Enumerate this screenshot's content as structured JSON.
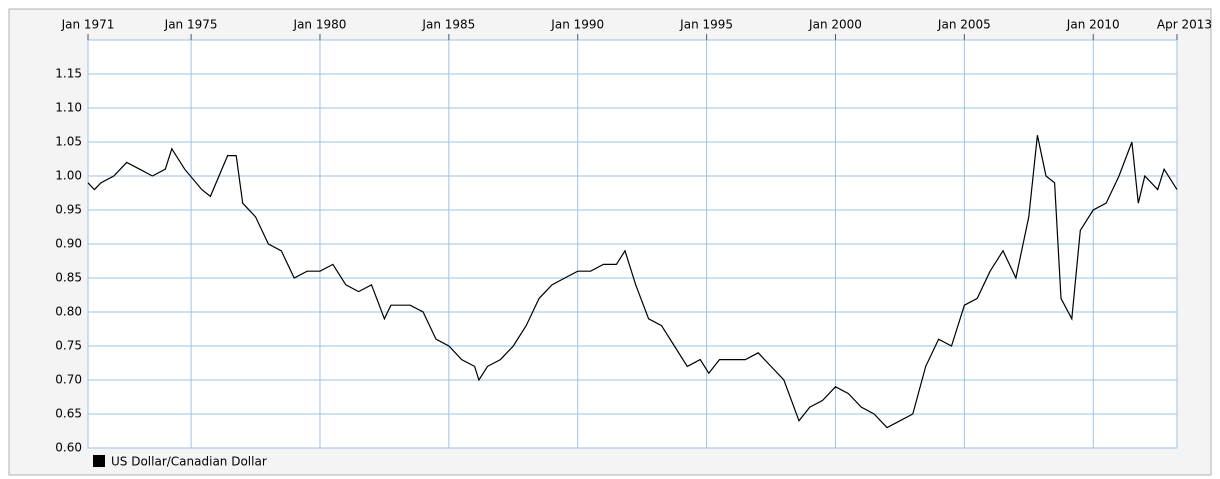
{
  "chart_data": {
    "type": "line",
    "x": [
      "1971-01",
      "1971-04",
      "1971-07",
      "1972-01",
      "1972-07",
      "1973-01",
      "1973-07",
      "1974-01",
      "1974-04",
      "1974-10",
      "1975-06",
      "1975-10",
      "1976-06",
      "1976-10",
      "1977-01",
      "1977-07",
      "1978-01",
      "1978-07",
      "1979-01",
      "1979-07",
      "1980-01",
      "1980-07",
      "1981-01",
      "1981-07",
      "1982-01",
      "1982-07",
      "1982-10",
      "1983-07",
      "1984-01",
      "1984-07",
      "1985-01",
      "1985-07",
      "1986-01",
      "1986-03",
      "1986-07",
      "1987-01",
      "1987-07",
      "1988-01",
      "1988-07",
      "1989-01",
      "1989-07",
      "1990-01",
      "1990-07",
      "1991-01",
      "1991-07",
      "1991-11",
      "1992-04",
      "1992-10",
      "1993-04",
      "1993-10",
      "1994-04",
      "1994-10",
      "1995-02",
      "1995-07",
      "1996-01",
      "1996-07",
      "1997-01",
      "1997-07",
      "1998-01",
      "1998-08",
      "1999-01",
      "1999-07",
      "2000-01",
      "2000-07",
      "2001-01",
      "2001-07",
      "2002-01",
      "2002-07",
      "2003-01",
      "2003-07",
      "2004-01",
      "2004-07",
      "2005-01",
      "2005-07",
      "2006-01",
      "2006-07",
      "2007-01",
      "2007-07",
      "2007-11",
      "2008-03",
      "2008-07",
      "2008-10",
      "2009-03",
      "2009-07",
      "2010-01",
      "2010-07",
      "2011-01",
      "2011-07",
      "2011-10",
      "2012-01",
      "2012-07",
      "2012-10",
      "2013-04"
    ],
    "series": [
      {
        "name": "US Dollar/Canadian Dollar",
        "color": "#000000",
        "values": [
          0.99,
          0.98,
          0.99,
          1.0,
          1.02,
          1.01,
          1.0,
          1.01,
          1.04,
          1.01,
          0.98,
          0.97,
          1.03,
          1.03,
          0.96,
          0.94,
          0.9,
          0.89,
          0.85,
          0.86,
          0.86,
          0.87,
          0.84,
          0.83,
          0.84,
          0.79,
          0.81,
          0.81,
          0.8,
          0.76,
          0.75,
          0.73,
          0.72,
          0.7,
          0.72,
          0.73,
          0.75,
          0.78,
          0.82,
          0.84,
          0.85,
          0.86,
          0.86,
          0.87,
          0.87,
          0.89,
          0.84,
          0.79,
          0.78,
          0.75,
          0.72,
          0.73,
          0.71,
          0.73,
          0.73,
          0.73,
          0.74,
          0.72,
          0.7,
          0.64,
          0.66,
          0.67,
          0.69,
          0.68,
          0.66,
          0.65,
          0.63,
          0.64,
          0.65,
          0.72,
          0.76,
          0.75,
          0.81,
          0.82,
          0.86,
          0.89,
          0.85,
          0.94,
          1.06,
          1.0,
          0.99,
          0.82,
          0.79,
          0.92,
          0.95,
          0.96,
          1.0,
          1.05,
          0.96,
          1.0,
          0.98,
          1.01,
          0.98
        ]
      }
    ],
    "xlim": [
      "1971-01",
      "2013-04"
    ],
    "xticks": [
      {
        "value": "1971-01",
        "label": "Jan 1971"
      },
      {
        "value": "1975-01",
        "label": "Jan 1975"
      },
      {
        "value": "1980-01",
        "label": "Jan 1980"
      },
      {
        "value": "1985-01",
        "label": "Jan 1985"
      },
      {
        "value": "1990-01",
        "label": "Jan 1990"
      },
      {
        "value": "1995-01",
        "label": "Jan 1995"
      },
      {
        "value": "2000-01",
        "label": "Jan 2000"
      },
      {
        "value": "2005-01",
        "label": "Jan 2005"
      },
      {
        "value": "2010-01",
        "label": "Jan 2010"
      },
      {
        "value": "2013-04",
        "label": "Apr 2013"
      }
    ],
    "ylim": [
      0.6,
      1.2
    ],
    "yticks": [
      {
        "value": 0.6,
        "label": "0.60"
      },
      0.65,
      {
        "value": 0.7,
        "label": "0.70"
      },
      0.75,
      {
        "value": 0.8,
        "label": "0.80"
      },
      0.85,
      {
        "value": 0.9,
        "label": "0.90"
      },
      0.95,
      {
        "value": 1.0,
        "label": "1.00"
      },
      1.05,
      {
        "value": 1.1,
        "label": "1.10"
      },
      1.15
    ],
    "grid": true
  }
}
